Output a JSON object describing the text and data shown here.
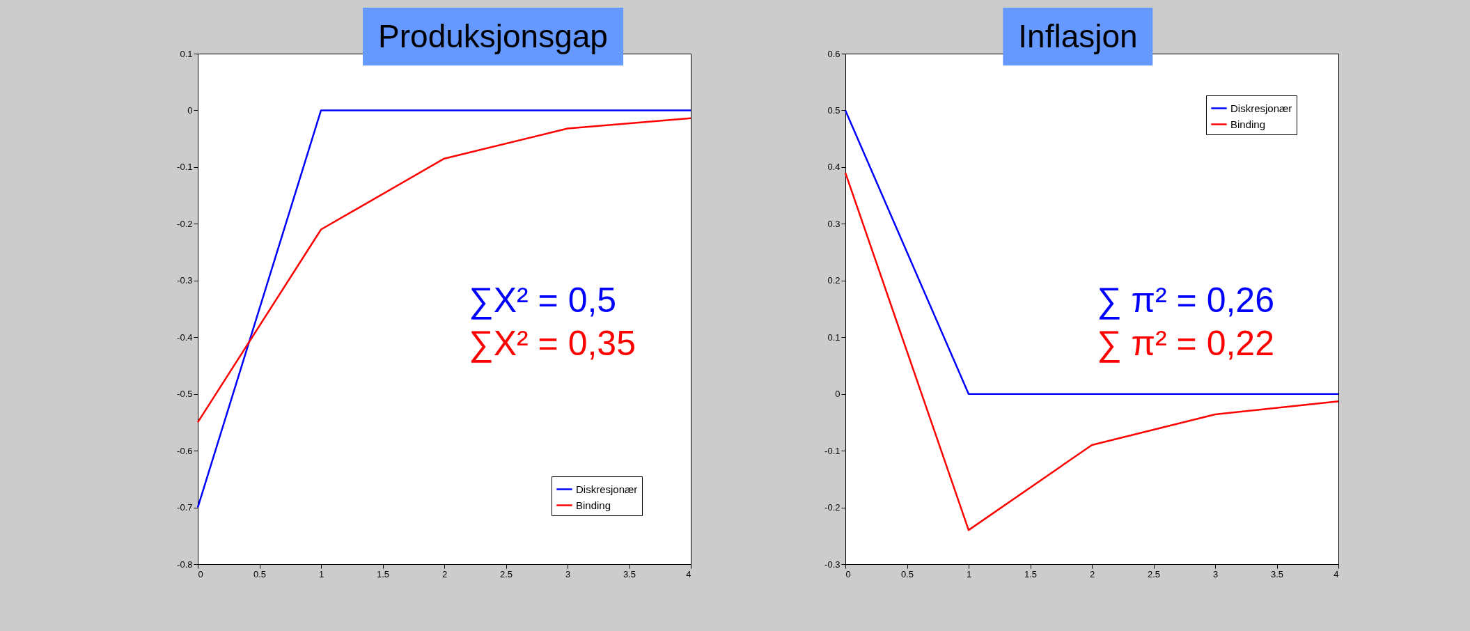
{
  "chart_data": [
    {
      "type": "line",
      "title": "Produksjonsgap",
      "x": [
        0,
        1,
        2,
        3,
        4
      ],
      "xlim": [
        0,
        4
      ],
      "xticks": [
        0,
        0.5,
        1,
        1.5,
        2,
        2.5,
        3,
        3.5,
        4
      ],
      "ylim": [
        -0.8,
        0.1
      ],
      "yticks": [
        -0.8,
        -0.7,
        -0.6,
        -0.5,
        -0.4,
        -0.3,
        -0.2,
        -0.1,
        0,
        0.1
      ],
      "grid": false,
      "legend": "bottom right",
      "series": [
        {
          "name": "Diskresjonær",
          "color": "#0000ff",
          "values": [
            -0.7,
            0,
            0,
            0,
            0
          ]
        },
        {
          "name": "Binding",
          "color": "#ff0000",
          "values": [
            -0.55,
            -0.21,
            -0.085,
            -0.032,
            -0.014
          ]
        }
      ],
      "annotations": [
        "∑X² = 0,5",
        "∑X² = 0,35"
      ]
    },
    {
      "type": "line",
      "title": "Inflasjon",
      "x": [
        0,
        1,
        2,
        3,
        4
      ],
      "xlim": [
        0,
        4
      ],
      "xticks": [
        0,
        0.5,
        1,
        1.5,
        2,
        2.5,
        3,
        3.5,
        4
      ],
      "ylim": [
        -0.3,
        0.6
      ],
      "yticks": [
        -0.3,
        -0.2,
        -0.1,
        0,
        0.1,
        0.2,
        0.3,
        0.4,
        0.5,
        0.6
      ],
      "grid": false,
      "legend": "top right",
      "series": [
        {
          "name": "Diskresjonær",
          "color": "#0000ff",
          "values": [
            0.5,
            0,
            0,
            0,
            0
          ]
        },
        {
          "name": "Binding",
          "color": "#ff0000",
          "values": [
            0.39,
            -0.24,
            -0.09,
            -0.036,
            -0.013
          ]
        }
      ],
      "annotations": [
        "∑ π² = 0,26",
        "∑ π² = 0,22"
      ]
    }
  ]
}
